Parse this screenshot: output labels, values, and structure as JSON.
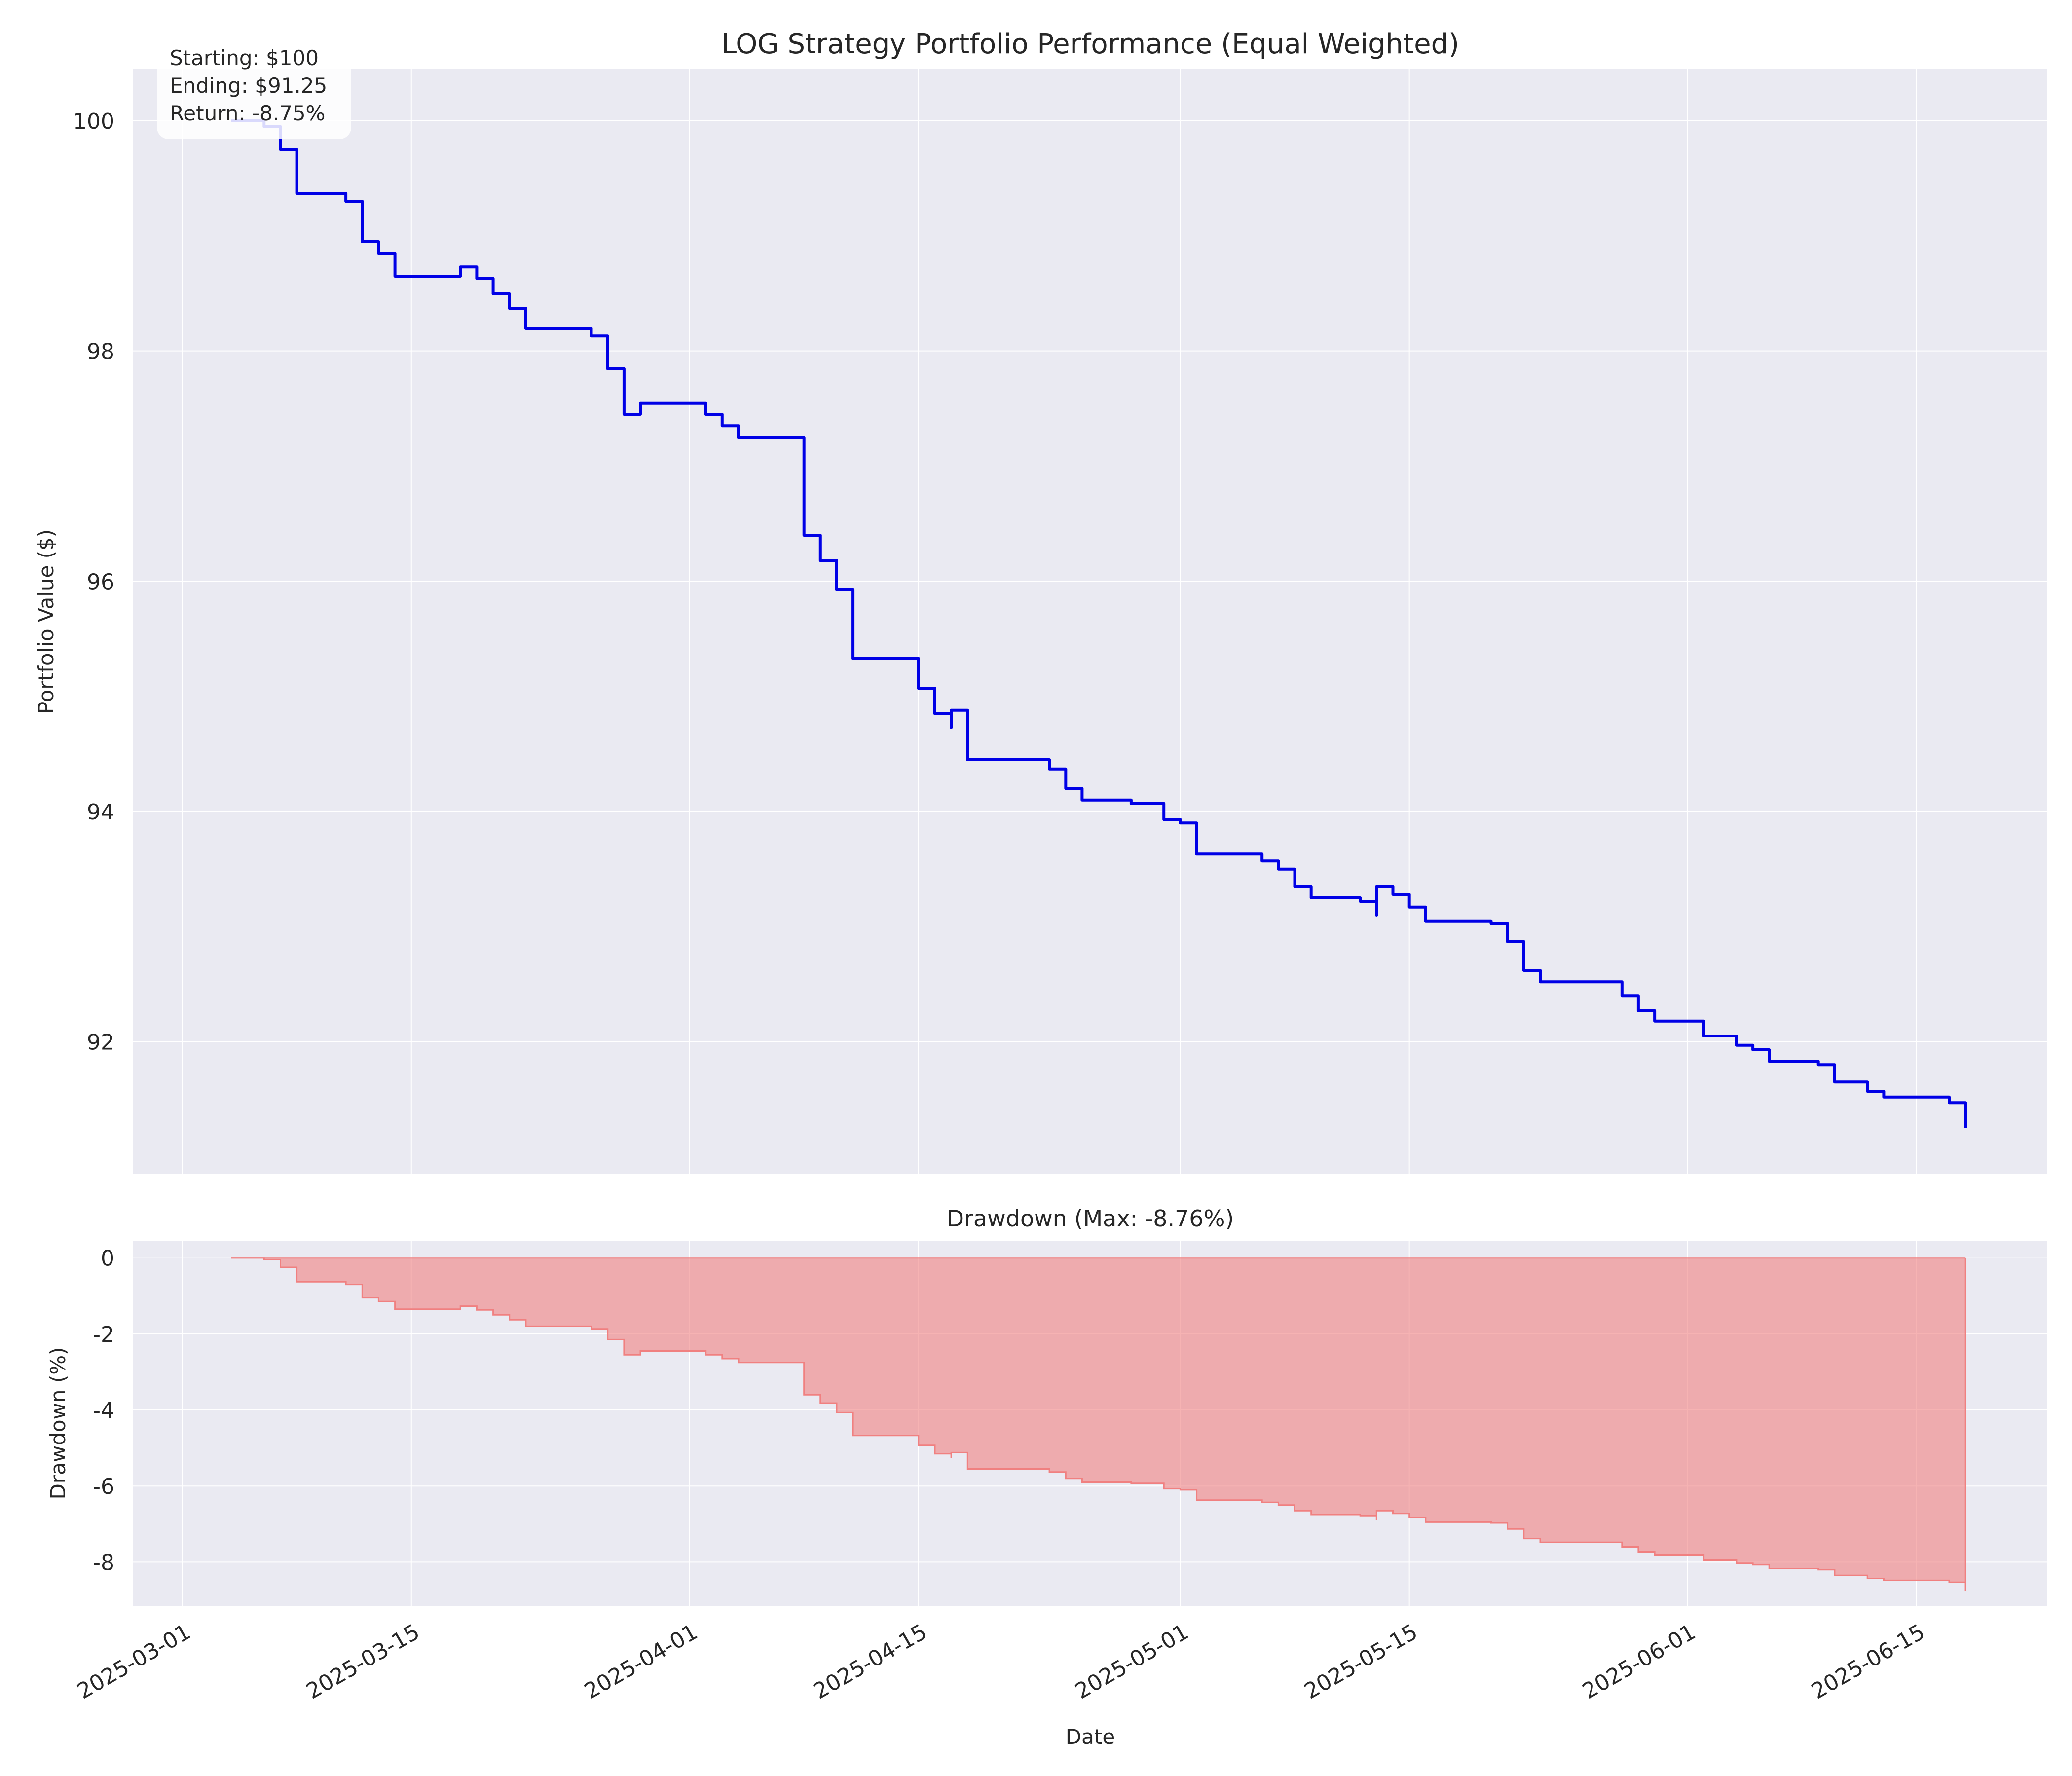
{
  "chart_data": [
    {
      "type": "line",
      "title": "LOG Strategy Portfolio Performance (Equal Weighted)",
      "xlabel": "",
      "ylabel": "Portfolio Value ($)",
      "x_range": [
        "2025-02-26",
        "2025-06-23"
      ],
      "ylim": [
        90.85,
        100.45
      ],
      "y_ticks": [
        92,
        94,
        96,
        98,
        100
      ],
      "grid": true,
      "line_color": "#0000e6",
      "annotation": [
        "Starting: $100",
        "Ending: $91.25",
        "Return: -8.75%"
      ],
      "series": [
        {
          "x": [
            "2025-03-04",
            "2025-03-05",
            "2025-03-06",
            "2025-03-07",
            "2025-03-08",
            "2025-03-08",
            "2025-03-11",
            "2025-03-11",
            "2025-03-12",
            "2025-03-12",
            "2025-03-13",
            "2025-03-14",
            "2025-03-14",
            "2025-03-18",
            "2025-03-18",
            "2025-03-19",
            "2025-03-19",
            "2025-03-20",
            "2025-03-21",
            "2025-03-22",
            "2025-03-25",
            "2025-03-26",
            "2025-03-27",
            "2025-03-28",
            "2025-03-28",
            "2025-03-29",
            "2025-04-01",
            "2025-04-02",
            "2025-04-03",
            "2025-04-04",
            "2025-04-07",
            "2025-04-08",
            "2025-04-08",
            "2025-04-09",
            "2025-04-10",
            "2025-04-10",
            "2025-04-11",
            "2025-04-11",
            "2025-04-14",
            "2025-04-15",
            "2025-04-16",
            "2025-04-17",
            "2025-04-17",
            "2025-04-18",
            "2025-04-21",
            "2025-04-22",
            "2025-04-23",
            "2025-04-24",
            "2025-04-25",
            "2025-04-28",
            "2025-04-29",
            "2025-04-30",
            "2025-05-01",
            "2025-05-02",
            "2025-05-05",
            "2025-05-06",
            "2025-05-07",
            "2025-05-08",
            "2025-05-09",
            "2025-05-12",
            "2025-05-13",
            "2025-05-13",
            "2025-05-14",
            "2025-05-15",
            "2025-05-16",
            "2025-05-19",
            "2025-05-20",
            "2025-05-21",
            "2025-05-22",
            "2025-05-23",
            "2025-05-27",
            "2025-05-28",
            "2025-05-29",
            "2025-05-30",
            "2025-06-02",
            "2025-06-03",
            "2025-06-04",
            "2025-06-05",
            "2025-06-06",
            "2025-06-09",
            "2025-06-10",
            "2025-06-11",
            "2025-06-12",
            "2025-06-13",
            "2025-06-16",
            "2025-06-17",
            "2025-06-18"
          ],
          "values": [
            100.0,
            100.0,
            99.95,
            99.75,
            99.5,
            99.37,
            99.37,
            99.3,
            99.15,
            98.95,
            98.85,
            98.65,
            98.65,
            98.65,
            98.73,
            98.73,
            98.63,
            98.5,
            98.37,
            98.2,
            98.2,
            98.13,
            97.85,
            97.63,
            97.45,
            97.55,
            97.55,
            97.45,
            97.35,
            97.25,
            97.25,
            97.25,
            96.4,
            96.18,
            95.93,
            95.93,
            95.93,
            95.33,
            95.33,
            95.07,
            94.85,
            94.73,
            94.88,
            94.45,
            94.45,
            94.45,
            94.37,
            94.2,
            94.1,
            94.07,
            94.07,
            93.93,
            93.9,
            93.63,
            93.63,
            93.57,
            93.5,
            93.35,
            93.25,
            93.22,
            93.1,
            93.35,
            93.28,
            93.17,
            93.05,
            93.05,
            93.03,
            92.87,
            92.62,
            92.52,
            92.52,
            92.4,
            92.27,
            92.18,
            92.05,
            92.05,
            91.97,
            91.93,
            91.83,
            91.8,
            91.65,
            91.65,
            91.57,
            91.52,
            91.52,
            91.47,
            91.25
          ]
        }
      ]
    },
    {
      "type": "area",
      "title": "Drawdown (Max: -8.76%)",
      "xlabel": "Date",
      "ylabel": "Drawdown (%)",
      "x_range": [
        "2025-02-26",
        "2025-06-23"
      ],
      "ylim": [
        -9.15,
        0.45
      ],
      "y_ticks": [
        -8,
        -6,
        -4,
        -2,
        0
      ],
      "x_ticks": [
        "2025-03-01",
        "2025-03-15",
        "2025-04-01",
        "2025-04-15",
        "2025-05-01",
        "2025-05-15",
        "2025-06-01",
        "2025-06-15"
      ],
      "grid": true,
      "fill_color": "#f08080",
      "series": [
        {
          "x": [
            "2025-03-04",
            "2025-03-05",
            "2025-03-06",
            "2025-03-07",
            "2025-03-08",
            "2025-03-08",
            "2025-03-11",
            "2025-03-11",
            "2025-03-12",
            "2025-03-12",
            "2025-03-13",
            "2025-03-14",
            "2025-03-14",
            "2025-03-18",
            "2025-03-18",
            "2025-03-19",
            "2025-03-19",
            "2025-03-20",
            "2025-03-21",
            "2025-03-22",
            "2025-03-25",
            "2025-03-26",
            "2025-03-27",
            "2025-03-28",
            "2025-03-28",
            "2025-03-29",
            "2025-04-01",
            "2025-04-02",
            "2025-04-03",
            "2025-04-04",
            "2025-04-07",
            "2025-04-08",
            "2025-04-08",
            "2025-04-09",
            "2025-04-10",
            "2025-04-10",
            "2025-04-11",
            "2025-04-11",
            "2025-04-14",
            "2025-04-15",
            "2025-04-16",
            "2025-04-17",
            "2025-04-17",
            "2025-04-18",
            "2025-04-21",
            "2025-04-22",
            "2025-04-23",
            "2025-04-24",
            "2025-04-25",
            "2025-04-28",
            "2025-04-29",
            "2025-04-30",
            "2025-05-01",
            "2025-05-02",
            "2025-05-05",
            "2025-05-06",
            "2025-05-07",
            "2025-05-08",
            "2025-05-09",
            "2025-05-12",
            "2025-05-13",
            "2025-05-13",
            "2025-05-14",
            "2025-05-15",
            "2025-05-16",
            "2025-05-19",
            "2025-05-20",
            "2025-05-21",
            "2025-05-22",
            "2025-05-23",
            "2025-05-27",
            "2025-05-28",
            "2025-05-29",
            "2025-05-30",
            "2025-06-02",
            "2025-06-03",
            "2025-06-04",
            "2025-06-05",
            "2025-06-06",
            "2025-06-09",
            "2025-06-10",
            "2025-06-11",
            "2025-06-12",
            "2025-06-13",
            "2025-06-16",
            "2025-06-17",
            "2025-06-18",
            "2025-06-18"
          ],
          "values": [
            0.0,
            0.0,
            -0.05,
            -0.25,
            -0.5,
            -0.63,
            -0.63,
            -0.7,
            -0.85,
            -1.05,
            -1.15,
            -1.35,
            -1.35,
            -1.35,
            -1.27,
            -1.27,
            -1.37,
            -1.5,
            -1.63,
            -1.8,
            -1.8,
            -1.87,
            -2.15,
            -2.37,
            -2.55,
            -2.45,
            -2.45,
            -2.55,
            -2.65,
            -2.75,
            -2.75,
            -2.75,
            -3.6,
            -3.82,
            -4.07,
            -4.07,
            -4.07,
            -4.67,
            -4.67,
            -4.93,
            -5.15,
            -5.27,
            -5.12,
            -5.55,
            -5.55,
            -5.55,
            -5.63,
            -5.8,
            -5.9,
            -5.93,
            -5.93,
            -6.07,
            -6.1,
            -6.37,
            -6.37,
            -6.43,
            -6.5,
            -6.65,
            -6.75,
            -6.78,
            -6.9,
            -6.65,
            -6.72,
            -6.83,
            -6.95,
            -6.95,
            -6.97,
            -7.13,
            -7.38,
            -7.48,
            -7.48,
            -7.6,
            -7.73,
            -7.82,
            -7.95,
            -7.95,
            -8.03,
            -8.07,
            -8.17,
            -8.2,
            -8.35,
            -8.35,
            -8.43,
            -8.48,
            -8.48,
            -8.53,
            -8.53,
            -8.76
          ]
        }
      ]
    }
  ]
}
